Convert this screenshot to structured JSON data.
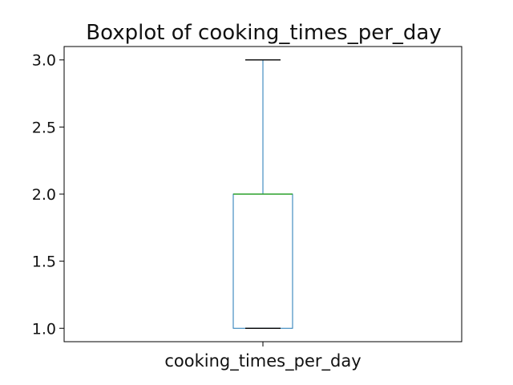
{
  "chart_data": {
    "type": "box",
    "title": "Boxplot of cooking_times_per_day",
    "categories": [
      "cooking_times_per_day"
    ],
    "series": [
      {
        "min": 1.0,
        "q1": 1.0,
        "median": 2.0,
        "q3": 2.0,
        "max": 3.0
      }
    ],
    "ylim": [
      0.9,
      3.1
    ],
    "yticks": [
      1.0,
      1.5,
      2.0,
      2.5,
      3.0
    ],
    "ytick_labels": [
      "1.0",
      "1.5",
      "2.0",
      "2.5",
      "3.0"
    ],
    "grid": false,
    "colors": {
      "box": "#1f77b4",
      "whisker": "#1f77b4",
      "median": "#2ca02c",
      "cap": "#000000",
      "axis": "#000000"
    }
  }
}
